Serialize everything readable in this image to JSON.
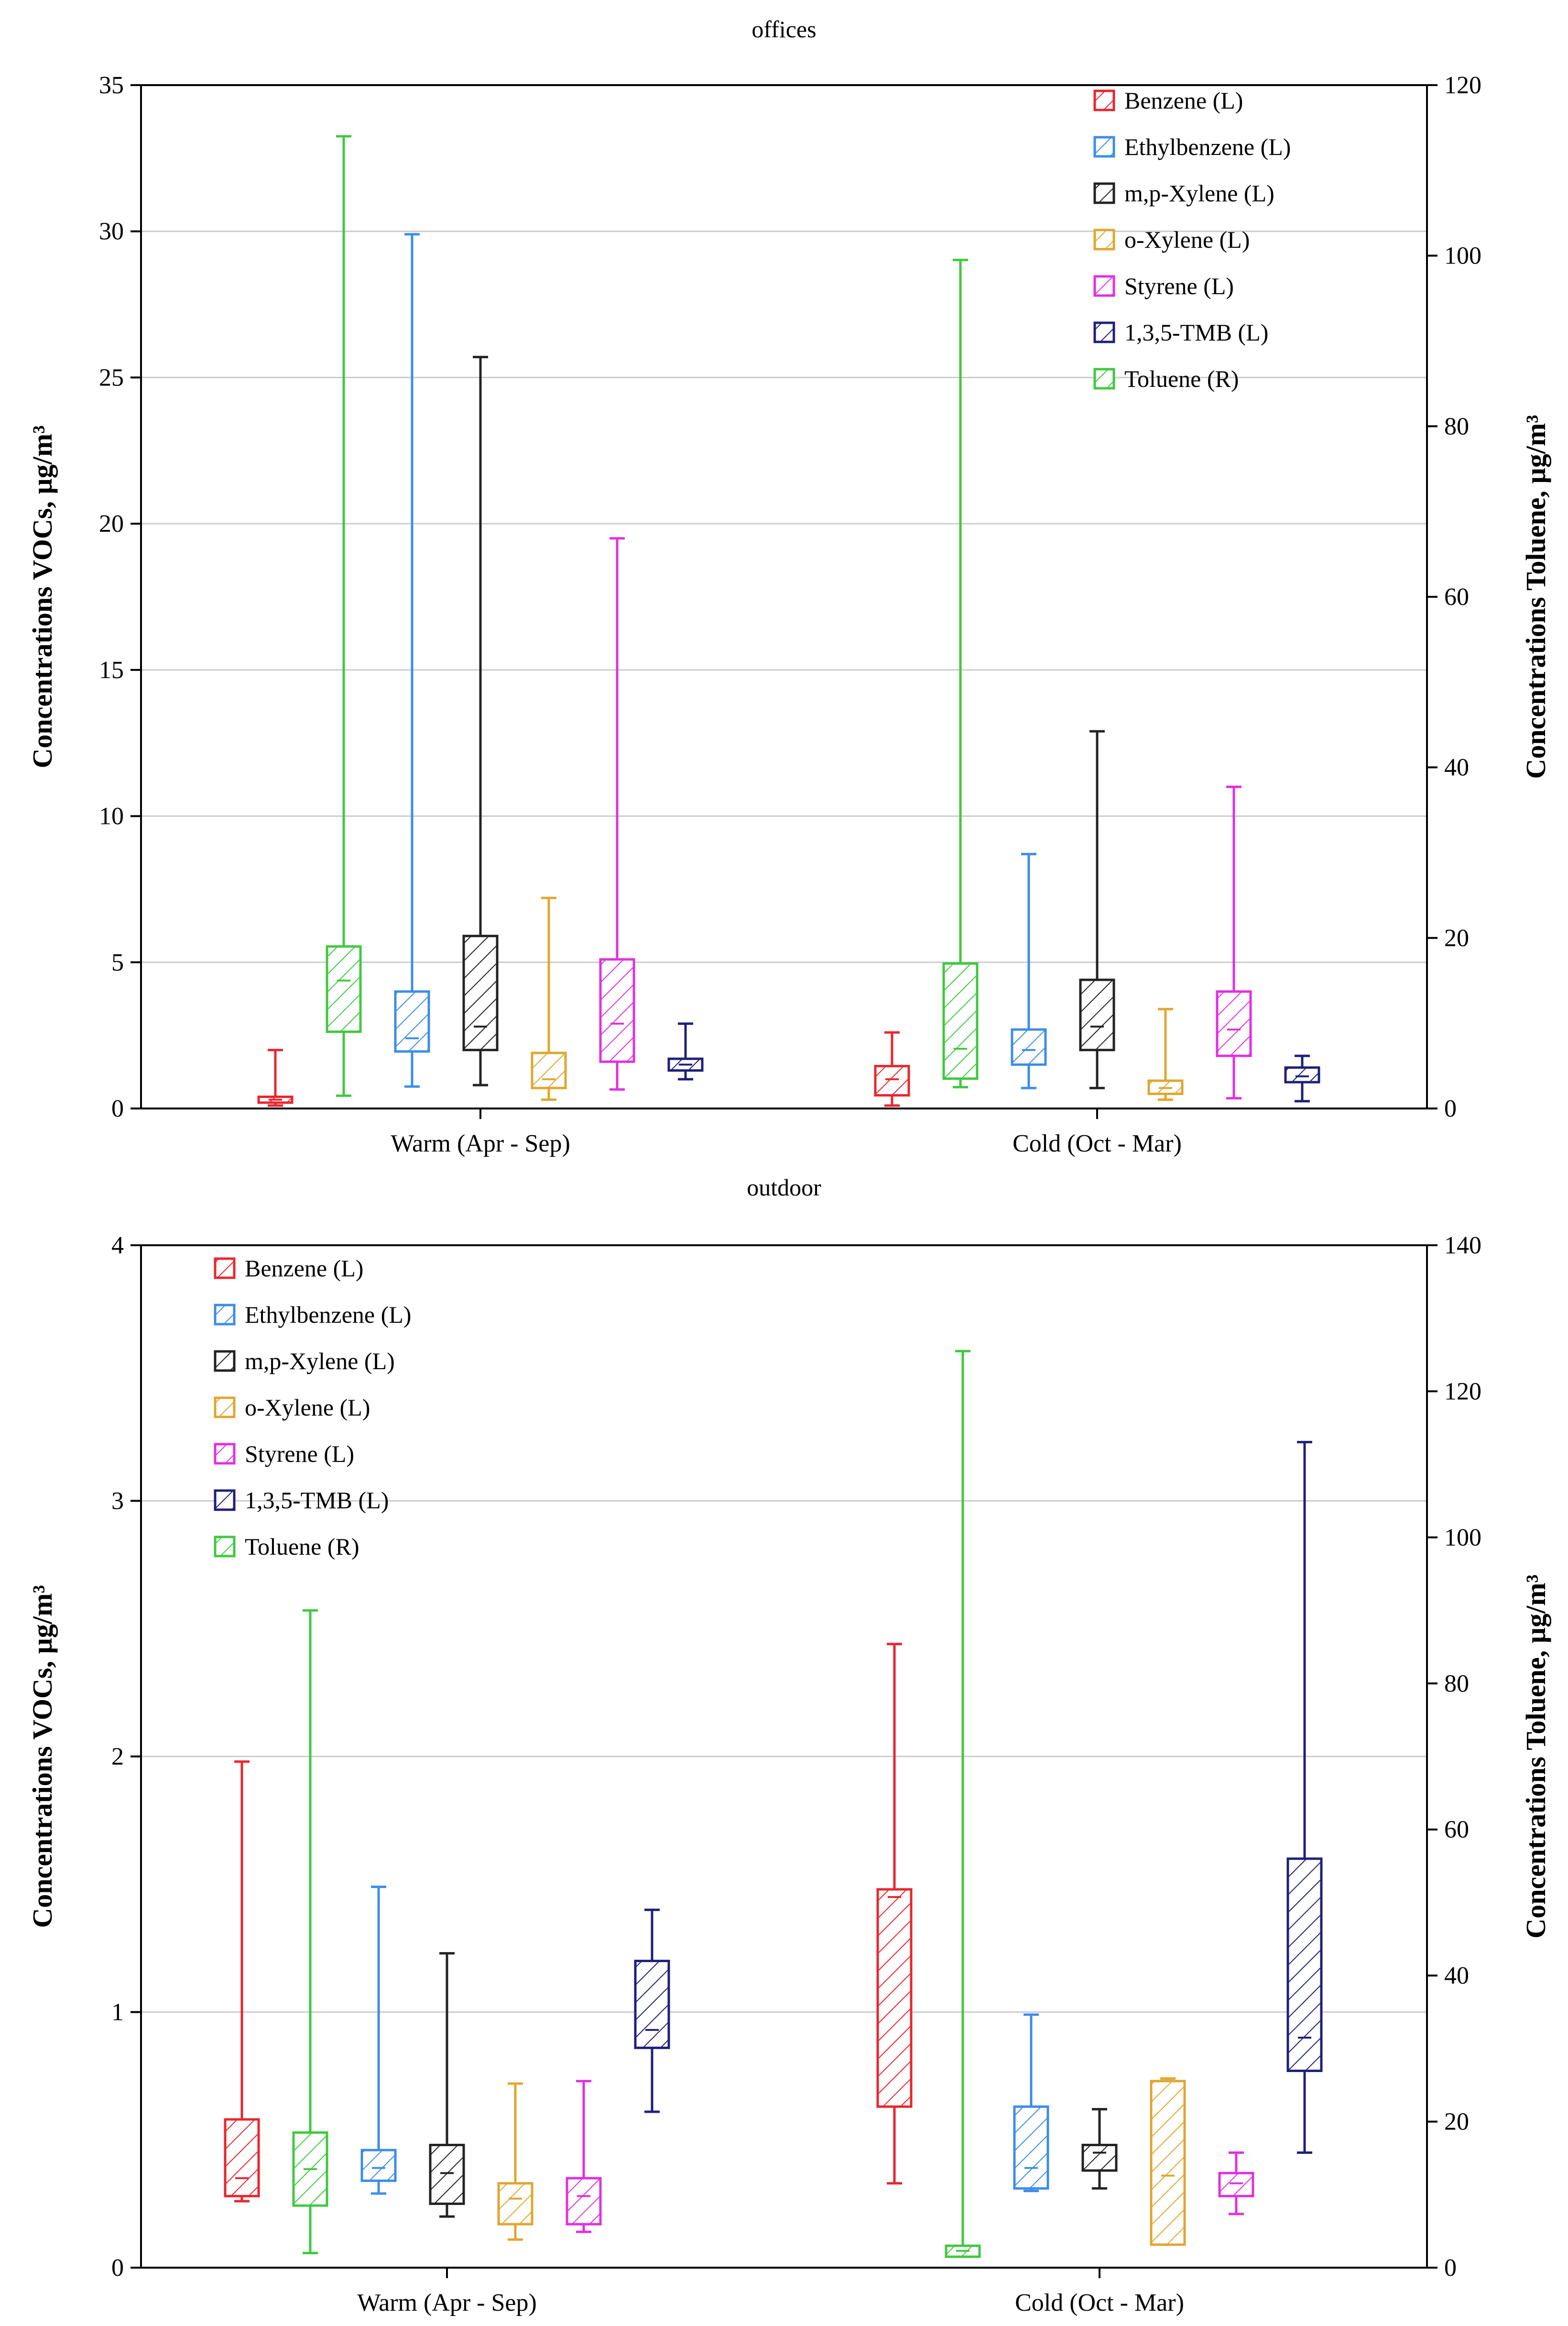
{
  "chart_data": [
    {
      "type": "box",
      "title": "offices",
      "xlabel": "",
      "ylabel_left": "Concentrations VOCs, µg/m³",
      "ylabel_right": "Concentrations Toluene, µg/m³",
      "ylim_left": [
        0,
        35
      ],
      "ylim_right": [
        0,
        120
      ],
      "yticks_left": [
        0,
        5,
        10,
        15,
        20,
        25,
        30,
        35
      ],
      "yticks_right": [
        0,
        20,
        40,
        60,
        80,
        100,
        120
      ],
      "grid": true,
      "legend_position": "top-right",
      "categories": [
        "Warm (Apr - Sep)",
        "Cold (Oct - Mar)"
      ],
      "series": [
        {
          "name": "Benzene (L)",
          "axis": "left",
          "color": "#e8262e",
          "boxes": [
            {
              "min": 0.1,
              "q1": 0.2,
              "median": 0.3,
              "q3": 0.4,
              "max": 2.0
            },
            {
              "min": 0.1,
              "q1": 0.45,
              "median": 1.0,
              "q3": 1.45,
              "max": 2.6
            }
          ]
        },
        {
          "name": "Ethylbenzene (L)",
          "axis": "left",
          "color": "#3b8de8",
          "boxes": [
            {
              "min": 0.75,
              "q1": 1.95,
              "median": 2.4,
              "q3": 4.0,
              "max": 29.9
            },
            {
              "min": 0.7,
              "q1": 1.5,
              "median": 2.0,
              "q3": 2.7,
              "max": 8.7
            }
          ]
        },
        {
          "name": "m,p-Xylene (L)",
          "axis": "left",
          "color": "#222222",
          "boxes": [
            {
              "min": 0.8,
              "q1": 2.0,
              "median": 2.8,
              "q3": 5.9,
              "max": 25.7
            },
            {
              "min": 0.7,
              "q1": 2.0,
              "median": 2.8,
              "q3": 4.4,
              "max": 12.9
            }
          ]
        },
        {
          "name": "o-Xylene (L)",
          "axis": "left",
          "color": "#e0a630",
          "boxes": [
            {
              "min": 0.3,
              "q1": 0.7,
              "median": 1.0,
              "q3": 1.9,
              "max": 7.2
            },
            {
              "min": 0.3,
              "q1": 0.5,
              "median": 0.7,
              "q3": 0.95,
              "max": 3.4
            }
          ]
        },
        {
          "name": "Styrene (L)",
          "axis": "left",
          "color": "#e030e0",
          "boxes": [
            {
              "min": 0.65,
              "q1": 1.6,
              "median": 2.9,
              "q3": 5.1,
              "max": 19.5
            },
            {
              "min": 0.35,
              "q1": 1.8,
              "median": 2.7,
              "q3": 4.0,
              "max": 11.0
            }
          ]
        },
        {
          "name": "1,3,5-TMB (L)",
          "axis": "left",
          "color": "#1f1f7a",
          "boxes": [
            {
              "min": 1.0,
              "q1": 1.3,
              "median": 1.5,
              "q3": 1.7,
              "max": 2.9
            },
            {
              "min": 0.25,
              "q1": 0.9,
              "median": 1.1,
              "q3": 1.4,
              "max": 1.8
            }
          ]
        },
        {
          "name": "Toluene (R)",
          "axis": "right",
          "color": "#3fc93f",
          "boxes": [
            {
              "min": 1.5,
              "q1": 9.0,
              "median": 15.0,
              "q3": 19.0,
              "max": 114.0
            },
            {
              "min": 2.5,
              "q1": 3.5,
              "median": 7.0,
              "q3": 17.0,
              "max": 99.5
            }
          ]
        }
      ]
    },
    {
      "type": "box",
      "title": "outdoor",
      "xlabel": "",
      "ylabel_left": "Concentrations VOCs, µg/m³",
      "ylabel_right": "Concentrations Toluene, µg/m³",
      "ylim_left": [
        0,
        4
      ],
      "ylim_right": [
        0,
        140
      ],
      "yticks_left": [
        0,
        1,
        2,
        3,
        4
      ],
      "yticks_right": [
        0,
        20,
        40,
        60,
        80,
        100,
        120,
        140
      ],
      "grid": true,
      "legend_position": "top-left",
      "categories": [
        "Warm (Apr - Sep)",
        "Cold (Oct - Mar)"
      ],
      "series": [
        {
          "name": "Benzene (L)",
          "axis": "left",
          "color": "#e8262e",
          "boxes": [
            {
              "min": 0.26,
              "q1": 0.28,
              "median": 0.35,
              "q3": 0.58,
              "max": 1.98
            },
            {
              "min": 0.33,
              "q1": 0.63,
              "median": 1.45,
              "q3": 1.48,
              "max": 2.44
            }
          ]
        },
        {
          "name": "Ethylbenzene (L)",
          "axis": "left",
          "color": "#3b8de8",
          "boxes": [
            {
              "min": 0.29,
              "q1": 0.34,
              "median": 0.39,
              "q3": 0.46,
              "max": 1.49
            },
            {
              "min": 0.3,
              "q1": 0.31,
              "median": 0.39,
              "q3": 0.63,
              "max": 0.99
            }
          ]
        },
        {
          "name": "m,p-Xylene (L)",
          "axis": "left",
          "color": "#222222",
          "boxes": [
            {
              "min": 0.2,
              "q1": 0.25,
              "median": 0.37,
              "q3": 0.48,
              "max": 1.23
            },
            {
              "min": 0.31,
              "q1": 0.38,
              "median": 0.45,
              "q3": 0.48,
              "max": 0.62
            }
          ]
        },
        {
          "name": "o-Xylene (L)",
          "axis": "left",
          "color": "#e0a630",
          "boxes": [
            {
              "min": 0.11,
              "q1": 0.17,
              "median": 0.27,
              "q3": 0.33,
              "max": 0.72
            },
            {
              "min": 0.09,
              "q1": 0.09,
              "median": 0.36,
              "q3": 0.73,
              "max": 0.74
            }
          ]
        },
        {
          "name": "Styrene (L)",
          "axis": "left",
          "color": "#e030e0",
          "boxes": [
            {
              "min": 0.14,
              "q1": 0.17,
              "median": 0.28,
              "q3": 0.35,
              "max": 0.73
            },
            {
              "min": 0.21,
              "q1": 0.28,
              "median": 0.33,
              "q3": 0.37,
              "max": 0.45
            }
          ]
        },
        {
          "name": "1,3,5-TMB (L)",
          "axis": "left",
          "color": "#1f1f7a",
          "boxes": [
            {
              "min": 0.61,
              "q1": 0.86,
              "median": 0.93,
              "q3": 1.2,
              "max": 1.4
            },
            {
              "min": 0.45,
              "q1": 0.77,
              "median": 0.9,
              "q3": 1.6,
              "max": 3.23
            }
          ]
        },
        {
          "name": "Toluene (R)",
          "axis": "right",
          "color": "#3fc93f",
          "boxes": [
            {
              "min": 2.0,
              "q1": 8.5,
              "median": 13.5,
              "q3": 18.5,
              "max": 90.0
            },
            {
              "min": 1.5,
              "q1": 1.5,
              "median": 2.3,
              "q3": 3.0,
              "max": 125.5
            }
          ]
        }
      ]
    }
  ]
}
